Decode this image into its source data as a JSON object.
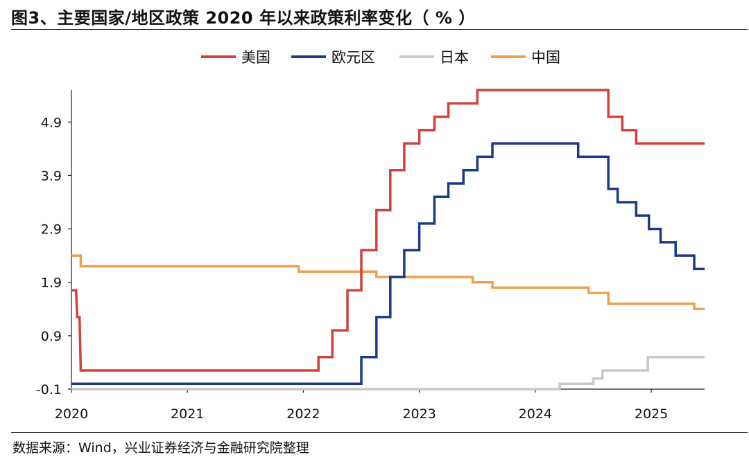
{
  "title": "图3、主要国家/地区政策 2020 年以来政策利率变化（ % ）",
  "source": "数据来源：Wind，兴业证券经济与金融研究院整理",
  "chart_data": {
    "type": "line",
    "title": "主要国家/地区政策 2020 年以来政策利率变化（ % ）",
    "xlabel": "",
    "ylabel": "",
    "x_ticks": [
      "2020",
      "2021",
      "2022",
      "2023",
      "2024",
      "2025"
    ],
    "y_ticks": [
      -0.1,
      0.9,
      1.9,
      2.9,
      3.9,
      4.9
    ],
    "y_tick_labels": [
      "-0.1",
      "0.9",
      "1.9",
      "2.9",
      "3.9",
      "4.9"
    ],
    "xlim": [
      2020.0,
      2025.46
    ],
    "ylim": [
      -0.1,
      5.5
    ],
    "grid": false,
    "legend_position": "top",
    "series": [
      {
        "name": "美国",
        "color": "#d2413a",
        "points": [
          [
            2020.0,
            1.75
          ],
          [
            2020.04,
            1.75
          ],
          [
            2020.05,
            1.25
          ],
          [
            2020.07,
            1.25
          ],
          [
            2020.08,
            0.25
          ],
          [
            2022.13,
            0.25
          ],
          [
            2022.13,
            0.5
          ],
          [
            2022.25,
            0.5
          ],
          [
            2022.25,
            1.0
          ],
          [
            2022.38,
            1.0
          ],
          [
            2022.38,
            1.75
          ],
          [
            2022.5,
            1.75
          ],
          [
            2022.5,
            2.5
          ],
          [
            2022.63,
            2.5
          ],
          [
            2022.63,
            3.25
          ],
          [
            2022.75,
            3.25
          ],
          [
            2022.75,
            4.0
          ],
          [
            2022.87,
            4.0
          ],
          [
            2022.87,
            4.5
          ],
          [
            2023.0,
            4.5
          ],
          [
            2023.0,
            4.75
          ],
          [
            2023.13,
            4.75
          ],
          [
            2023.13,
            5.0
          ],
          [
            2023.25,
            5.0
          ],
          [
            2023.25,
            5.25
          ],
          [
            2023.5,
            5.25
          ],
          [
            2023.5,
            5.5
          ],
          [
            2024.63,
            5.5
          ],
          [
            2024.63,
            5.0
          ],
          [
            2024.75,
            5.0
          ],
          [
            2024.75,
            4.75
          ],
          [
            2024.87,
            4.75
          ],
          [
            2024.87,
            4.5
          ],
          [
            2025.46,
            4.5
          ]
        ]
      },
      {
        "name": "欧元区",
        "color": "#1a3a8a",
        "points": [
          [
            2020.0,
            0.0
          ],
          [
            2022.5,
            0.0
          ],
          [
            2022.5,
            0.5
          ],
          [
            2022.63,
            0.5
          ],
          [
            2022.63,
            1.25
          ],
          [
            2022.75,
            1.25
          ],
          [
            2022.75,
            2.0
          ],
          [
            2022.87,
            2.0
          ],
          [
            2022.87,
            2.5
          ],
          [
            2023.0,
            2.5
          ],
          [
            2023.0,
            3.0
          ],
          [
            2023.13,
            3.0
          ],
          [
            2023.13,
            3.5
          ],
          [
            2023.25,
            3.5
          ],
          [
            2023.25,
            3.75
          ],
          [
            2023.38,
            3.75
          ],
          [
            2023.38,
            4.0
          ],
          [
            2023.5,
            4.0
          ],
          [
            2023.5,
            4.25
          ],
          [
            2023.63,
            4.25
          ],
          [
            2023.63,
            4.5
          ],
          [
            2024.37,
            4.5
          ],
          [
            2024.37,
            4.25
          ],
          [
            2024.63,
            4.25
          ],
          [
            2024.63,
            3.65
          ],
          [
            2024.71,
            3.65
          ],
          [
            2024.71,
            3.4
          ],
          [
            2024.87,
            3.4
          ],
          [
            2024.87,
            3.15
          ],
          [
            2024.98,
            3.15
          ],
          [
            2024.98,
            2.9
          ],
          [
            2025.08,
            2.9
          ],
          [
            2025.08,
            2.65
          ],
          [
            2025.21,
            2.65
          ],
          [
            2025.21,
            2.4
          ],
          [
            2025.37,
            2.4
          ],
          [
            2025.37,
            2.15
          ],
          [
            2025.46,
            2.15
          ]
        ]
      },
      {
        "name": "日本",
        "color": "#c8c8c8",
        "points": [
          [
            2020.0,
            -0.1
          ],
          [
            2024.21,
            -0.1
          ],
          [
            2024.21,
            0.0
          ],
          [
            2024.5,
            0.0
          ],
          [
            2024.5,
            0.1
          ],
          [
            2024.58,
            0.1
          ],
          [
            2024.58,
            0.25
          ],
          [
            2024.97,
            0.25
          ],
          [
            2024.97,
            0.5
          ],
          [
            2025.46,
            0.5
          ]
        ]
      },
      {
        "name": "中国",
        "color": "#f0a050",
        "points": [
          [
            2020.0,
            2.4
          ],
          [
            2020.08,
            2.4
          ],
          [
            2020.08,
            2.2
          ],
          [
            2021.96,
            2.2
          ],
          [
            2021.96,
            2.1
          ],
          [
            2022.63,
            2.1
          ],
          [
            2022.63,
            2.0
          ],
          [
            2023.46,
            2.0
          ],
          [
            2023.46,
            1.9
          ],
          [
            2023.63,
            1.9
          ],
          [
            2023.63,
            1.8
          ],
          [
            2024.46,
            1.8
          ],
          [
            2024.46,
            1.7
          ],
          [
            2024.63,
            1.7
          ],
          [
            2024.63,
            1.5
          ],
          [
            2025.37,
            1.5
          ],
          [
            2025.37,
            1.4
          ],
          [
            2025.46,
            1.4
          ]
        ]
      }
    ]
  }
}
